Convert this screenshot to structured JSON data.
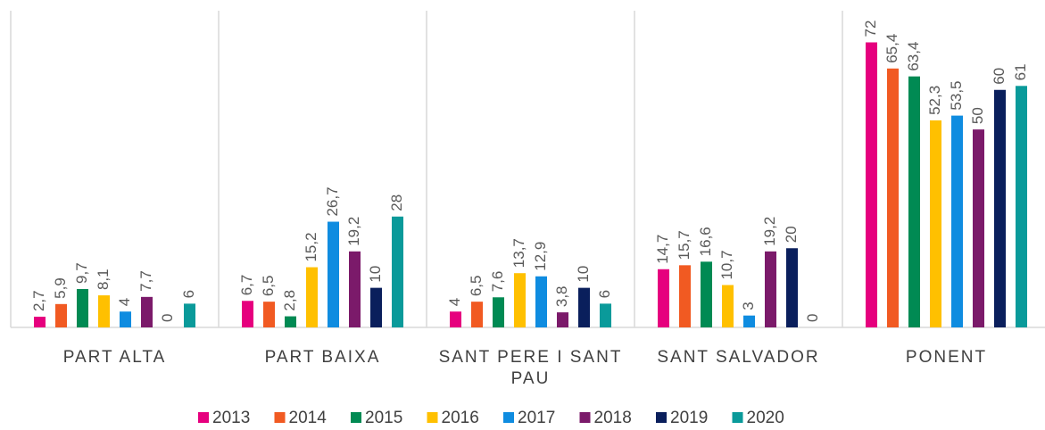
{
  "chart_data": {
    "type": "bar",
    "categories": [
      "PART ALTA",
      "PART BAIXA",
      "SANT PERE I SANT PAU",
      "SANT SALVADOR",
      "PONENT"
    ],
    "ylim": [
      0,
      80
    ],
    "legend": "bottom",
    "series": [
      {
        "name": "2013",
        "color": "#e6007e",
        "values": [
          2.7,
          6.7,
          4,
          14.7,
          72
        ],
        "value_labels": [
          "2,7",
          "6,7",
          "4",
          "14,7",
          "72"
        ]
      },
      {
        "name": "2014",
        "color": "#f15a22",
        "values": [
          5.9,
          6.5,
          6.5,
          15.7,
          65.4
        ],
        "value_labels": [
          "5,9",
          "6,5",
          "6,5",
          "15,7",
          "65,4"
        ]
      },
      {
        "name": "2015",
        "color": "#008a53",
        "values": [
          9.7,
          2.8,
          7.6,
          16.6,
          63.4
        ],
        "value_labels": [
          "9,7",
          "2,8",
          "7,6",
          "16,6",
          "63,4"
        ]
      },
      {
        "name": "2016",
        "color": "#ffc000",
        "values": [
          8.1,
          15.2,
          13.7,
          10.7,
          52.3
        ],
        "value_labels": [
          "8,1",
          "15,2",
          "13,7",
          "10,7",
          "52,3"
        ]
      },
      {
        "name": "2017",
        "color": "#0f8ce0",
        "values": [
          4,
          26.7,
          12.9,
          3,
          53.5
        ],
        "value_labels": [
          "4",
          "26,7",
          "12,9",
          "3",
          "53,5"
        ]
      },
      {
        "name": "2018",
        "color": "#7b1a6a",
        "values": [
          7.7,
          19.2,
          3.8,
          19.2,
          50
        ],
        "value_labels": [
          "7,7",
          "19,2",
          "3,8",
          "19,2",
          "50"
        ]
      },
      {
        "name": "2019",
        "color": "#0a1f5c",
        "values": [
          0,
          10,
          10,
          20,
          60
        ],
        "value_labels": [
          "0",
          "10",
          "10",
          "20",
          "60"
        ]
      },
      {
        "name": "2020",
        "color": "#0a9a9a",
        "values": [
          6,
          28,
          6,
          0,
          61
        ],
        "value_labels": [
          "6",
          "28",
          "6",
          "0",
          "61"
        ]
      }
    ]
  }
}
